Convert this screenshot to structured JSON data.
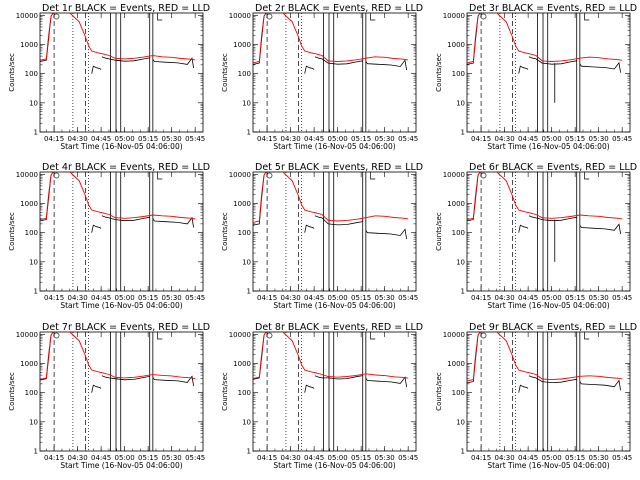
{
  "chart_data": {
    "type": "line",
    "panels": [
      {
        "title": "Det 1r BLACK = Events, RED = LLD",
        "plateau_events": 290,
        "plateau_lld": 320,
        "tail_events": 260,
        "tail_lld": 330,
        "dip": null
      },
      {
        "title": "Det 2r BLACK = Events, RED = LLD",
        "plateau_events": 230,
        "plateau_lld": 260,
        "tail_events": 220,
        "tail_lld": 330,
        "dip": null
      },
      {
        "title": "Det 3r BLACK = Events, RED = LLD",
        "plateau_events": 230,
        "plateau_lld": 260,
        "tail_events": 180,
        "tail_lld": 320,
        "dip": 10
      },
      {
        "title": "Det 4r BLACK = Events, RED = LLD",
        "plateau_events": 280,
        "plateau_lld": 310,
        "tail_events": 250,
        "tail_lld": 330,
        "dip": null
      },
      {
        "title": "Det 5r BLACK = Events, RED = LLD",
        "plateau_events": 200,
        "plateau_lld": 250,
        "tail_events": 100,
        "tail_lld": 330,
        "dip": null
      },
      {
        "title": "Det 6r BLACK = Events, RED = LLD",
        "plateau_events": 280,
        "plateau_lld": 310,
        "tail_events": 150,
        "tail_lld": 330,
        "dip": 10
      },
      {
        "title": "Det 7r BLACK = Events, RED = LLD",
        "plateau_events": 300,
        "plateau_lld": 320,
        "tail_events": 280,
        "tail_lld": 340,
        "dip": null
      },
      {
        "title": "Det 8r BLACK = Events, RED = LLD",
        "plateau_events": 320,
        "plateau_lld": 340,
        "tail_events": 260,
        "tail_lld": 350,
        "dip": null
      },
      {
        "title": "Det 9r BLACK = Events, RED = LLD",
        "plateau_events": 240,
        "plateau_lld": 280,
        "tail_events": 200,
        "tail_lld": 330,
        "dip": null
      }
    ],
    "xlabel": "Start Time (16-Nov-05 04:06:00)",
    "ylabel": "Counts/sec",
    "x_ticks": [
      "04:15",
      "04:30",
      "04:45",
      "05:00",
      "05:15",
      "05:30",
      "05:45"
    ],
    "y_ticks": [
      "1",
      "10",
      "100",
      "1000",
      "10000"
    ],
    "y_scale": "log",
    "ylim": [
      1,
      12000
    ],
    "series": [
      {
        "name": "BLACK = Events",
        "color": "#000000"
      },
      {
        "name": "RED = LLD",
        "color": "#ff0000"
      }
    ]
  }
}
